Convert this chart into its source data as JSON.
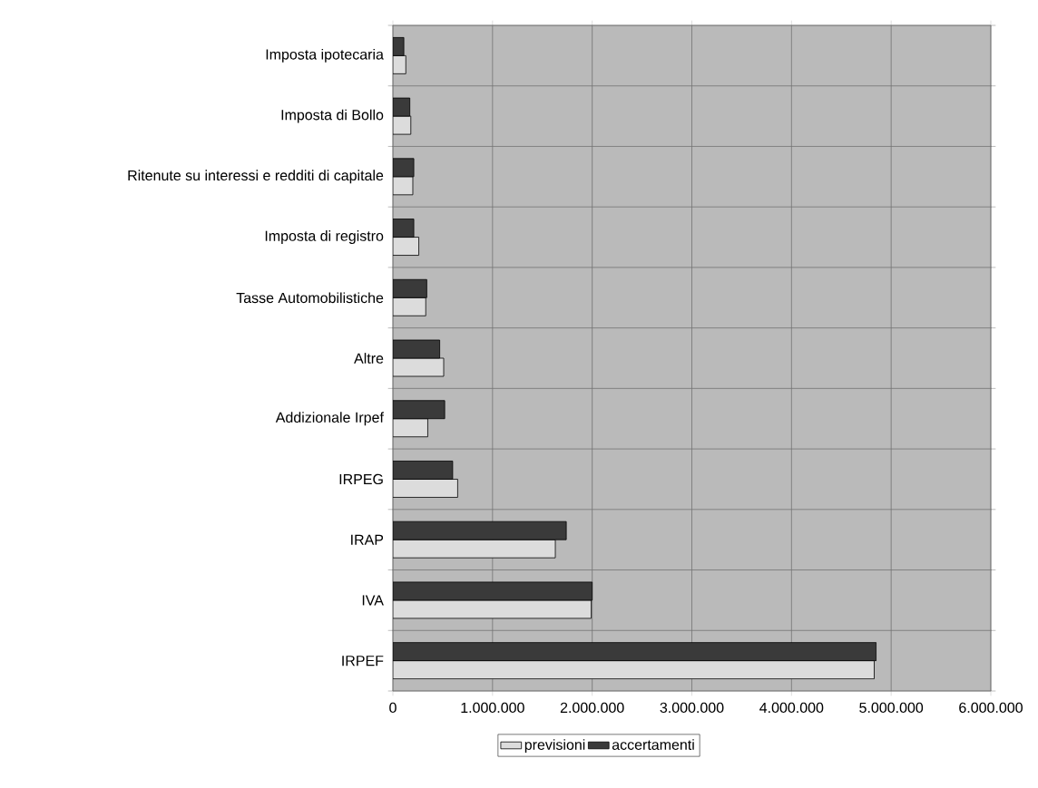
{
  "chart_data": {
    "type": "bar",
    "orientation": "horizontal",
    "categories": [
      "Imposta ipotecaria",
      "Imposta di Bollo",
      "Ritenute su interessi e redditi di capitale",
      "Imposta di registro",
      "Tasse Automobilistiche",
      "Altre",
      "Addizionale Irpef",
      "IRPEG",
      "IRAP",
      "IVA",
      "IRPEF"
    ],
    "series": [
      {
        "name": "previsioni",
        "color": "#dcdcdc",
        "values": [
          130000,
          180000,
          200000,
          260000,
          330000,
          510000,
          350000,
          650000,
          1630000,
          1990000,
          4830000
        ]
      },
      {
        "name": "accertamenti",
        "color": "#3a3a3a",
        "values": [
          110000,
          170000,
          210000,
          210000,
          340000,
          470000,
          520000,
          600000,
          1740000,
          2000000,
          4850000
        ]
      }
    ],
    "xlim": [
      0,
      6000000
    ],
    "xticks": [
      0,
      {
        "value": 1000000,
        "label": "1.000.000"
      },
      {
        "value": 2000000,
        "label": "2.000.000"
      },
      {
        "value": 3000000,
        "label": "3.000.000"
      },
      {
        "value": 4000000,
        "label": "4.000.000"
      },
      {
        "value": 5000000,
        "label": "5.000.000"
      },
      {
        "value": 6000000,
        "label": "6.000.000"
      }
    ],
    "grid": true,
    "legend": "bottom"
  }
}
